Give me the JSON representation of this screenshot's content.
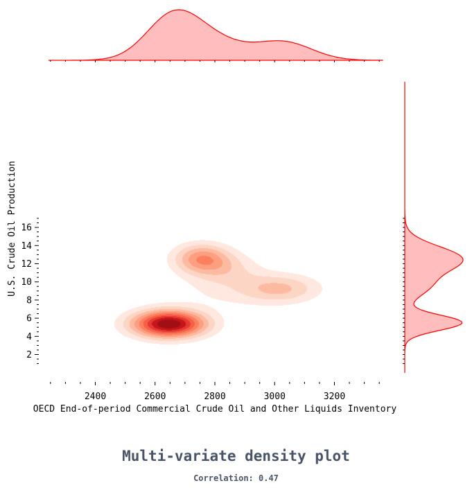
{
  "title": "Multi-variate density plot",
  "subtitle": "Correlation: 0.47",
  "chart_data": {
    "type": "kde_joint",
    "xlabel": "OECD End-of-period Commercial Crude Oil and Other Liquids Inventory",
    "ylabel": "U.S. Crude Oil Production",
    "xlim": [
      2225,
      2375
    ],
    "ylim": [
      0.5,
      17.7
    ],
    "xticks": [
      2400,
      2600,
      2800,
      3000,
      3200
    ],
    "yticks": [
      2,
      4,
      6,
      8,
      10,
      12,
      14,
      16
    ],
    "levels": 10,
    "colors": {
      "contour_scale": [
        "#fee8df",
        "#fdd5c4",
        "#fcbba1",
        "#fc9f81",
        "#fb8060",
        "#f65f48",
        "#e43a31",
        "#c5161c",
        "#a10f15"
      ],
      "marginal_fill": "#ffbdbd",
      "marginal_line": "#ff0000"
    },
    "joint_density_components": [
      {
        "x": 2645,
        "y": 5.4,
        "sx": 85,
        "sy": 1.05,
        "w": 0.5
      },
      {
        "x": 2755,
        "y": 12.6,
        "sx": 65,
        "sy": 1.15,
        "w": 0.23
      },
      {
        "x": 2840,
        "y": 11.4,
        "sx": 80,
        "sy": 1.3,
        "w": 0.09
      },
      {
        "x": 3020,
        "y": 9.3,
        "sx": 90,
        "sy": 1.1,
        "w": 0.14
      },
      {
        "x": 2860,
        "y": 9.0,
        "sx": 150,
        "sy": 1.5,
        "w": 0.05
      }
    ],
    "marginal_x_components": [
      {
        "mu": 2660,
        "sigma": 90,
        "w": 0.55
      },
      {
        "mu": 2800,
        "sigma": 100,
        "w": 0.22
      },
      {
        "mu": 3030,
        "sigma": 95,
        "w": 0.23
      }
    ],
    "marginal_y_components": [
      {
        "mu": 5.5,
        "sigma": 0.85,
        "w": 0.42
      },
      {
        "mu": 9.5,
        "sigma": 1.2,
        "w": 0.16
      },
      {
        "mu": 12.5,
        "sigma": 1.4,
        "w": 0.42
      }
    ]
  }
}
